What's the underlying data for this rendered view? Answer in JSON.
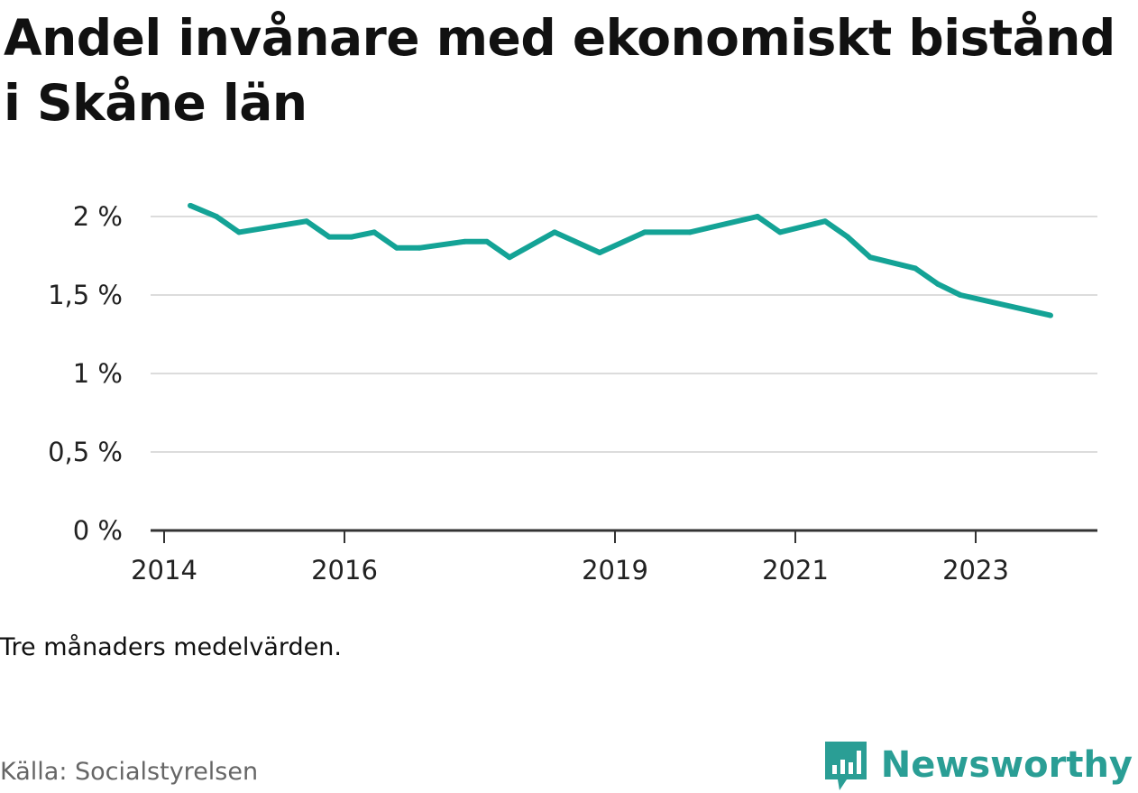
{
  "title": "Andel invånare med ekonomiskt bistånd i Skåne län",
  "note": "Tre månaders medelvärden.",
  "source": "Källa: Socialstyrelsen",
  "brand": {
    "name": "Newsworthy",
    "icon": "newsworthy-logo-icon",
    "color": "#2a9e95"
  },
  "chart_data": {
    "type": "line",
    "title": "Andel invånare med ekonomiskt bistånd i Skåne län",
    "xlabel": "",
    "ylabel": "",
    "ylim": [
      0,
      2.0
    ],
    "y_ticks": [
      0,
      0.5,
      1,
      1.5,
      2
    ],
    "y_tick_labels": [
      "0 %",
      "0,5 %",
      "1 %",
      "1,5 %",
      "2 %"
    ],
    "x_ticks": [
      2014,
      2016,
      2019,
      2021,
      2023
    ],
    "x_tick_labels": [
      "2014",
      "2016",
      "2019",
      "2021",
      "2023"
    ],
    "xlim": [
      2013.85,
      2024.35
    ],
    "grid": true,
    "line_color": "#14a396",
    "series": [
      {
        "name": "",
        "x": [
          2014.29,
          2014.58,
          2014.83,
          2015.58,
          2015.83,
          2016.08,
          2016.33,
          2016.58,
          2016.83,
          2017.33,
          2017.58,
          2017.83,
          2018.33,
          2018.83,
          2019.33,
          2019.83,
          2020.58,
          2020.83,
          2021.33,
          2021.58,
          2021.83,
          2022.33,
          2022.58,
          2022.83,
          2023.83
        ],
        "y": [
          2.07,
          2.0,
          1.9,
          1.97,
          1.87,
          1.87,
          1.9,
          1.8,
          1.8,
          1.84,
          1.84,
          1.74,
          1.9,
          1.77,
          1.9,
          1.9,
          2.0,
          1.9,
          1.97,
          1.87,
          1.74,
          1.67,
          1.57,
          1.5,
          1.37
        ]
      }
    ]
  }
}
